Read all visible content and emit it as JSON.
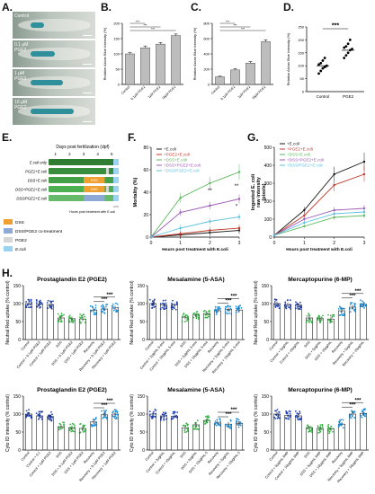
{
  "panel_letters": {
    "A": "A.",
    "B": "B.",
    "C": "C.",
    "D": "D.",
    "E": "E.",
    "F": "F.",
    "G": "G.",
    "H": "H."
  },
  "panelA": {
    "photos": [
      {
        "label": "Control",
        "stain": 0.25
      },
      {
        "label": "0.1 µM\nPGE2",
        "stain": 0.45
      },
      {
        "label": "1 µM\nPGE2",
        "stain": 0.6
      },
      {
        "label": "10 µM\nPGE2",
        "stain": 0.8
      }
    ]
  },
  "panelB": {
    "type": "bar",
    "ylabel": "Relative Alcian Blue Intensity (%)",
    "categories": [
      "Control",
      "0.1µM PGE2",
      "1µM PGE2",
      "10µM PGE2"
    ],
    "values": [
      100,
      120,
      132,
      160
    ],
    "errors": [
      4,
      6,
      5,
      5
    ],
    "ylim": [
      0,
      200
    ],
    "yticks": [
      0,
      50,
      100,
      150,
      200
    ],
    "sig": [
      "***",
      "***",
      "***"
    ]
  },
  "panelC": {
    "type": "bar",
    "ylabel": "Relative Alcian Blue Intensity (%)",
    "categories": [
      "Control",
      "0.1µM PGE2",
      "1µM PGE2",
      "10µM PGE2"
    ],
    "values": [
      100,
      190,
      280,
      560
    ],
    "errors": [
      8,
      15,
      20,
      25
    ],
    "ylim": [
      0,
      800
    ],
    "yticks": [
      0,
      200,
      400,
      600,
      800
    ],
    "sig": [
      "***",
      "***",
      "***"
    ]
  },
  "panelD": {
    "type": "scatter",
    "ylabel": "Relative Alcian Blue Intensity (%)",
    "categories": [
      "Control",
      "PGE2"
    ],
    "points": [
      [
        70,
        80,
        90,
        95,
        100,
        105,
        110,
        120,
        130
      ],
      [
        130,
        140,
        150,
        160,
        165,
        170,
        175,
        185,
        200
      ]
    ],
    "means": [
      100,
      160
    ],
    "ylim": [
      0,
      250
    ],
    "yticks": [
      0,
      50,
      100,
      150,
      200,
      250
    ],
    "sig": "***"
  },
  "panelE": {
    "title": "Days post fertilization (dpf)",
    "days": [
      "1",
      "2",
      "3",
      "4",
      "5"
    ],
    "rows": [
      "E.coli only",
      "PGE2+E.coli",
      "DSS+E.coli",
      "DSS+PGE2+E.coli",
      "DSS/PGE2+E.coli"
    ],
    "bar_labels": [
      "DSS",
      "DSS"
    ],
    "legend": [
      "DSS",
      "DSS/PGE2 co-treatment",
      "PGE2",
      "E.coli"
    ],
    "axis_label": "Hours post treatment with E.coli"
  },
  "panelF": {
    "type": "line",
    "ylabel": "Mortality (%)",
    "xlabel": "Hours post treatment with E.coli",
    "x": [
      0,
      1,
      2,
      3
    ],
    "ylim": [
      0,
      80
    ],
    "yticks": [
      0,
      20,
      40,
      60,
      80
    ],
    "series": [
      {
        "name": "+E.coli",
        "values": [
          0,
          2,
          4,
          6
        ],
        "color": "#1a1a1a"
      },
      {
        "name": "+PGE2+E.coli",
        "values": [
          0,
          3,
          6,
          8
        ],
        "color": "#c0392b"
      },
      {
        "name": "+DSS+E.coli",
        "values": [
          0,
          35,
          48,
          58
        ],
        "color": "#5cb85c"
      },
      {
        "name": "+DSS+PGE2+E.coli",
        "values": [
          0,
          22,
          28,
          34
        ],
        "color": "#9b59b6"
      },
      {
        "name": "+DSS/PGE2+E.coli",
        "values": [
          0,
          8,
          14,
          18
        ],
        "color": "#5bc0de"
      }
    ],
    "annotations": [
      "**",
      "**",
      "*"
    ]
  },
  "panelG": {
    "type": "line",
    "ylabel": "Ingested E. coli\nraw intensity\n(pixels)",
    "xlabel": "Hours post treatment with E.coli",
    "x": [
      0,
      1,
      2,
      3
    ],
    "ylim": [
      0,
      500
    ],
    "yticks": [
      0,
      100,
      200,
      300,
      400,
      500
    ],
    "series": [
      {
        "name": "+E.coli",
        "values": [
          10,
          150,
          350,
          420
        ],
        "color": "#1a1a1a"
      },
      {
        "name": "+PGE2+E.coli",
        "values": [
          10,
          120,
          290,
          350
        ],
        "color": "#c0392b"
      },
      {
        "name": "+DSS+E.coli",
        "values": [
          10,
          60,
          110,
          120
        ],
        "color": "#5cb85c"
      },
      {
        "name": "+DSS+PGE2+E.coli",
        "values": [
          10,
          100,
          150,
          160
        ],
        "color": "#9b59b6"
      },
      {
        "name": "+DSS/PGE2+E.coli",
        "values": [
          10,
          80,
          130,
          140
        ],
        "color": "#5bc0de"
      }
    ]
  },
  "panelH": {
    "charts": [
      {
        "title": "Prostaglandin E2 (PGE2)",
        "ylabel": "Neutral Red uptake (% control)",
        "ylim": [
          0,
          150
        ],
        "yticks": [
          0,
          50,
          100,
          150
        ],
        "categories": [
          "Control",
          "Control + 0.1µM PGE2",
          "Control + 1µM PGE2",
          "DSS",
          "DSS + 0.1µM PGE2",
          "DSS + 1µM PGE2",
          "Recovery",
          "Recovery + 0.1µM PGE2",
          "Recovery + 1µM PGE2"
        ],
        "values": [
          100,
          98,
          97,
          60,
          58,
          57,
          82,
          85,
          88
        ],
        "color": "#1f3fb0",
        "color2": "#3cb44b",
        "color3": "#1f8fd8",
        "sig": "***"
      },
      {
        "title": "Mesalamine (5-ASA)",
        "ylabel": "Neutral Red uptake (% control)",
        "ylim": [
          0,
          150
        ],
        "yticks": [
          0,
          50,
          100,
          150
        ],
        "categories": [
          "Control",
          "Control + 2µg/mL 5-asa",
          "Control + 10µg/mL 5-asa",
          "DSS",
          "DSS + 2µg/mL 5-asa",
          "DSS + 10µg/mL 5-asa",
          "Recovery",
          "Recovery + 2µg/mL 5-asa",
          "Recovery + 10µg/mL 5-asa"
        ],
        "values": [
          100,
          97,
          96,
          62,
          68,
          72,
          80,
          84,
          82
        ],
        "color": "#1f3fb0",
        "color2": "#3cb44b",
        "color3": "#1f8fd8",
        "sig": "***"
      },
      {
        "title": "Mercaptopurine (6-MP)",
        "ylabel": "Neutral Red uptake (% control)",
        "ylim": [
          0,
          150
        ],
        "yticks": [
          0,
          50,
          100,
          150
        ],
        "categories": [
          "Control",
          "Control + 5µg/mL",
          "Control + 10µg/mL",
          "DSS",
          "DSS + 5µg/mL",
          "DSS + 10µg/mL",
          "Recovery",
          "Recovery + 5µg/mL",
          "Recovery + 10µg/mL"
        ],
        "values": [
          100,
          97,
          96,
          60,
          58,
          57,
          80,
          90,
          98
        ],
        "color": "#1f3fb0",
        "color2": "#3cb44b",
        "color3": "#1f8fd8",
        "sig": "***"
      },
      {
        "title": "Prostaglandin E2 (PGE2)",
        "ylabel": "Cyto ID intensity (% control)",
        "ylim": [
          0,
          150
        ],
        "yticks": [
          0,
          50,
          100,
          150
        ],
        "categories": [
          "Control",
          "Control + 0.1",
          "Control + 1µM PGE2",
          "DSS",
          "DSS + 0.1µM PGE2",
          "DSS + 1µM PGE2",
          "Recovery",
          "Recovery + 0.1µM PGE2",
          "Recovery + 1µM PGE2"
        ],
        "values": [
          100,
          95,
          93,
          65,
          62,
          60,
          78,
          98,
          100
        ],
        "color": "#1f3fb0",
        "color2": "#3cb44b",
        "color3": "#1f8fd8",
        "sig": "***"
      },
      {
        "title": "Mesalamine (5-ASA)",
        "ylabel": "Cyto ID intensity (% control)",
        "ylim": [
          0,
          150
        ],
        "yticks": [
          0,
          50,
          100,
          150
        ],
        "categories": [
          "Control",
          "Control + 2µg/mL",
          "Control + 10µg/mL",
          "DSS",
          "DSS + 2µg/mL",
          "DSS + 10µg/mL 5",
          "Recovery",
          "Recovery + 2µg/mL",
          "Recovery + 10µg/mL 5"
        ],
        "values": [
          100,
          95,
          94,
          62,
          70,
          82,
          75,
          72,
          74
        ],
        "color": "#1f3fb0",
        "color2": "#3cb44b",
        "color3": "#1f8fd8",
        "sig": "***"
      },
      {
        "title": "Mercaptopurine (6-MP)",
        "ylabel": "Cyto ID intensity (% control)",
        "ylim": [
          0,
          150
        ],
        "yticks": [
          0,
          50,
          100,
          150
        ],
        "categories": [
          "Control",
          "Control + 5µg/mL 6MP",
          "Control + 10µg/mL 6MP",
          "DSS",
          "DSS + 5µg/mL 6MP",
          "DSS + 10µg/mL 6MP",
          "Recovery",
          "Recovery + 5µg/mL 6MP",
          "Recovery + 10µg/mL 6MP"
        ],
        "values": [
          100,
          96,
          95,
          62,
          60,
          58,
          72,
          100,
          102
        ],
        "color": "#1f3fb0",
        "color2": "#3cb44b",
        "color3": "#1f8fd8",
        "sig": "***"
      }
    ]
  }
}
